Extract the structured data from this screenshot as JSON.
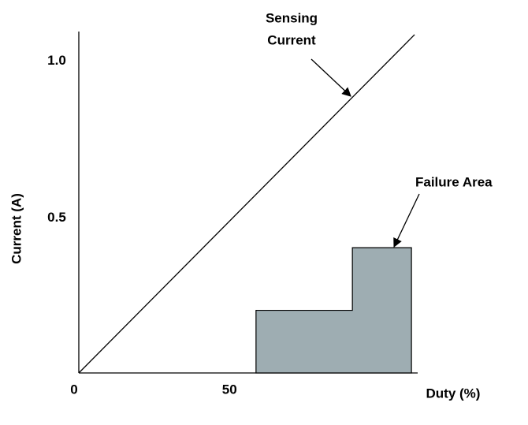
{
  "chart_data": {
    "type": "line",
    "xlabel": "Duty (%)",
    "ylabel": "Current (A)",
    "xlim": [
      0,
      109
    ],
    "ylim": [
      0,
      1.09
    ],
    "xticks": [
      0,
      50
    ],
    "yticks": [
      0.5,
      {
        "value": 1,
        "label": "1.0"
      }
    ],
    "series": [
      {
        "name": "Sensing Current",
        "label_lines": [
          "Sensing",
          "Current"
        ],
        "color": "#000000",
        "x": [
          0,
          108
        ],
        "values": [
          0,
          1.08
        ]
      },
      {
        "name": "Failure Area",
        "type": "area",
        "color": "#9eadb2",
        "x": [
          57,
          57,
          88,
          88,
          107,
          107
        ],
        "values": [
          0,
          0.2,
          0.2,
          0.4,
          0.4,
          0
        ]
      }
    ]
  }
}
